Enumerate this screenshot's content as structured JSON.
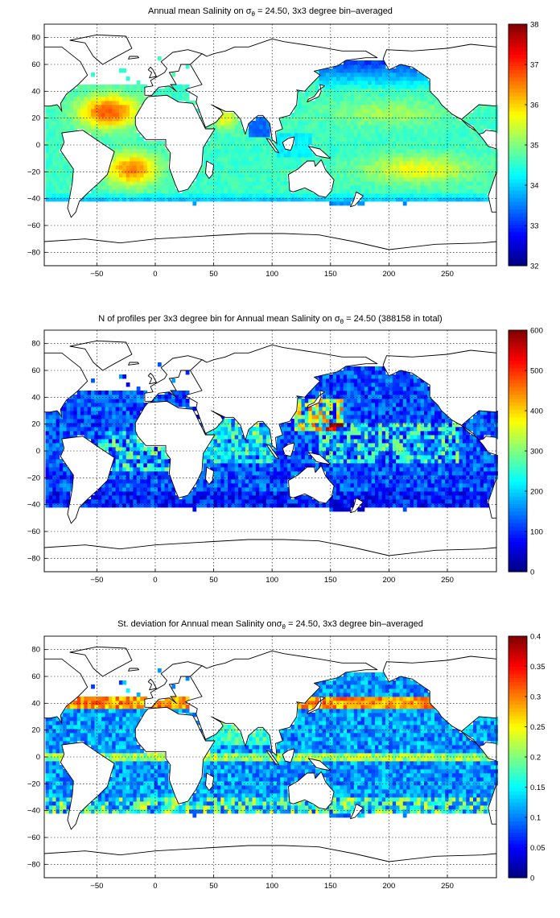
{
  "chart_data": [
    {
      "type": "heatmap",
      "title": "Annual mean Salinity on σθ = 24.50, 3x3 degree bin–averaged",
      "title_prefix": "Annual mean Salinity on ",
      "title_suffix": " = 24.50, 3x3 degree bin–averaged",
      "xlim": [
        -95,
        292
      ],
      "ylim": [
        -90,
        90
      ],
      "xticks": [
        -50,
        0,
        50,
        100,
        150,
        200,
        250
      ],
      "yticks": [
        -80,
        -60,
        -40,
        -20,
        0,
        20,
        40,
        60,
        80
      ],
      "colorbar": {
        "range": [
          32,
          38
        ],
        "ticks": [
          32,
          33,
          34,
          35,
          36,
          37,
          38
        ]
      },
      "grid": true,
      "bin_size_deg": 3
    },
    {
      "type": "heatmap",
      "title": "N of profiles per 3x3 degree bin for Annual mean Salinity on σθ = 24.50 (388158 in total)",
      "title_prefix": "N of profiles per 3x3 degree bin for Annual mean Salinity on ",
      "title_suffix": " = 24.50 (388158 in total)",
      "total_profiles": 388158,
      "xlim": [
        -95,
        292
      ],
      "ylim": [
        -90,
        90
      ],
      "xticks": [
        -50,
        0,
        50,
        100,
        150,
        200,
        250
      ],
      "yticks": [
        -80,
        -60,
        -40,
        -20,
        0,
        20,
        40,
        60,
        80
      ],
      "colorbar": {
        "range": [
          0,
          600
        ],
        "ticks": [
          0,
          100,
          200,
          300,
          400,
          500,
          600
        ]
      },
      "grid": true,
      "bin_size_deg": 3
    },
    {
      "type": "heatmap",
      "title": "St. deviation for Annual mean Salinity on σθ = 24.50, 3x3 degree bin–averaged",
      "title_prefix": "St. deviation for Annual mean Salinity on",
      "title_suffix": " = 24.50, 3x3 degree bin–averaged",
      "xlim": [
        -95,
        292
      ],
      "ylim": [
        -90,
        90
      ],
      "xticks": [
        -50,
        0,
        50,
        100,
        150,
        200,
        250
      ],
      "yticks": [
        -80,
        -60,
        -40,
        -20,
        0,
        20,
        40,
        60,
        80
      ],
      "colorbar": {
        "range": [
          0,
          0.4
        ],
        "ticks": [
          0,
          0.05,
          0.1,
          0.15,
          0.2,
          0.25,
          0.3,
          0.35,
          0.4
        ]
      },
      "grid": true,
      "bin_size_deg": 3
    }
  ]
}
